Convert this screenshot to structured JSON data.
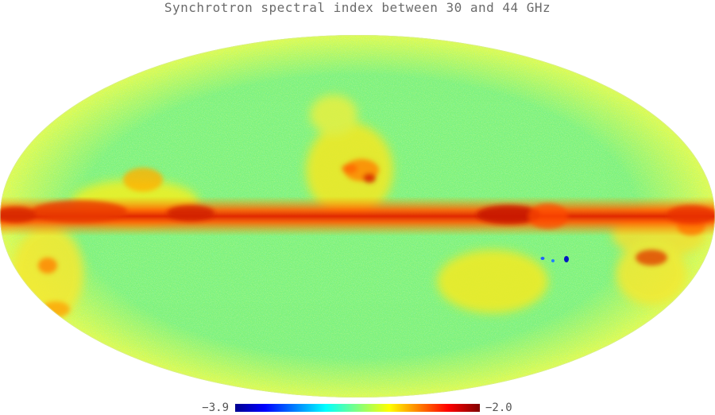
{
  "title": "Synchrotron spectral index between 30 and 44 GHz",
  "projection": "mollweide",
  "colormap": {
    "name": "jet",
    "min_label": "−3.9",
    "max_label": "−2.0",
    "min": -3.9,
    "max": -2.0,
    "stops": [
      "#00008f",
      "#0000ff",
      "#00ffff",
      "#80ff80",
      "#ffff00",
      "#ff0000",
      "#800000"
    ]
  },
  "colors": {
    "background_field": "#7fff7f",
    "galactic_plane": "#e03000",
    "title_text": "#6b6b6b"
  }
}
